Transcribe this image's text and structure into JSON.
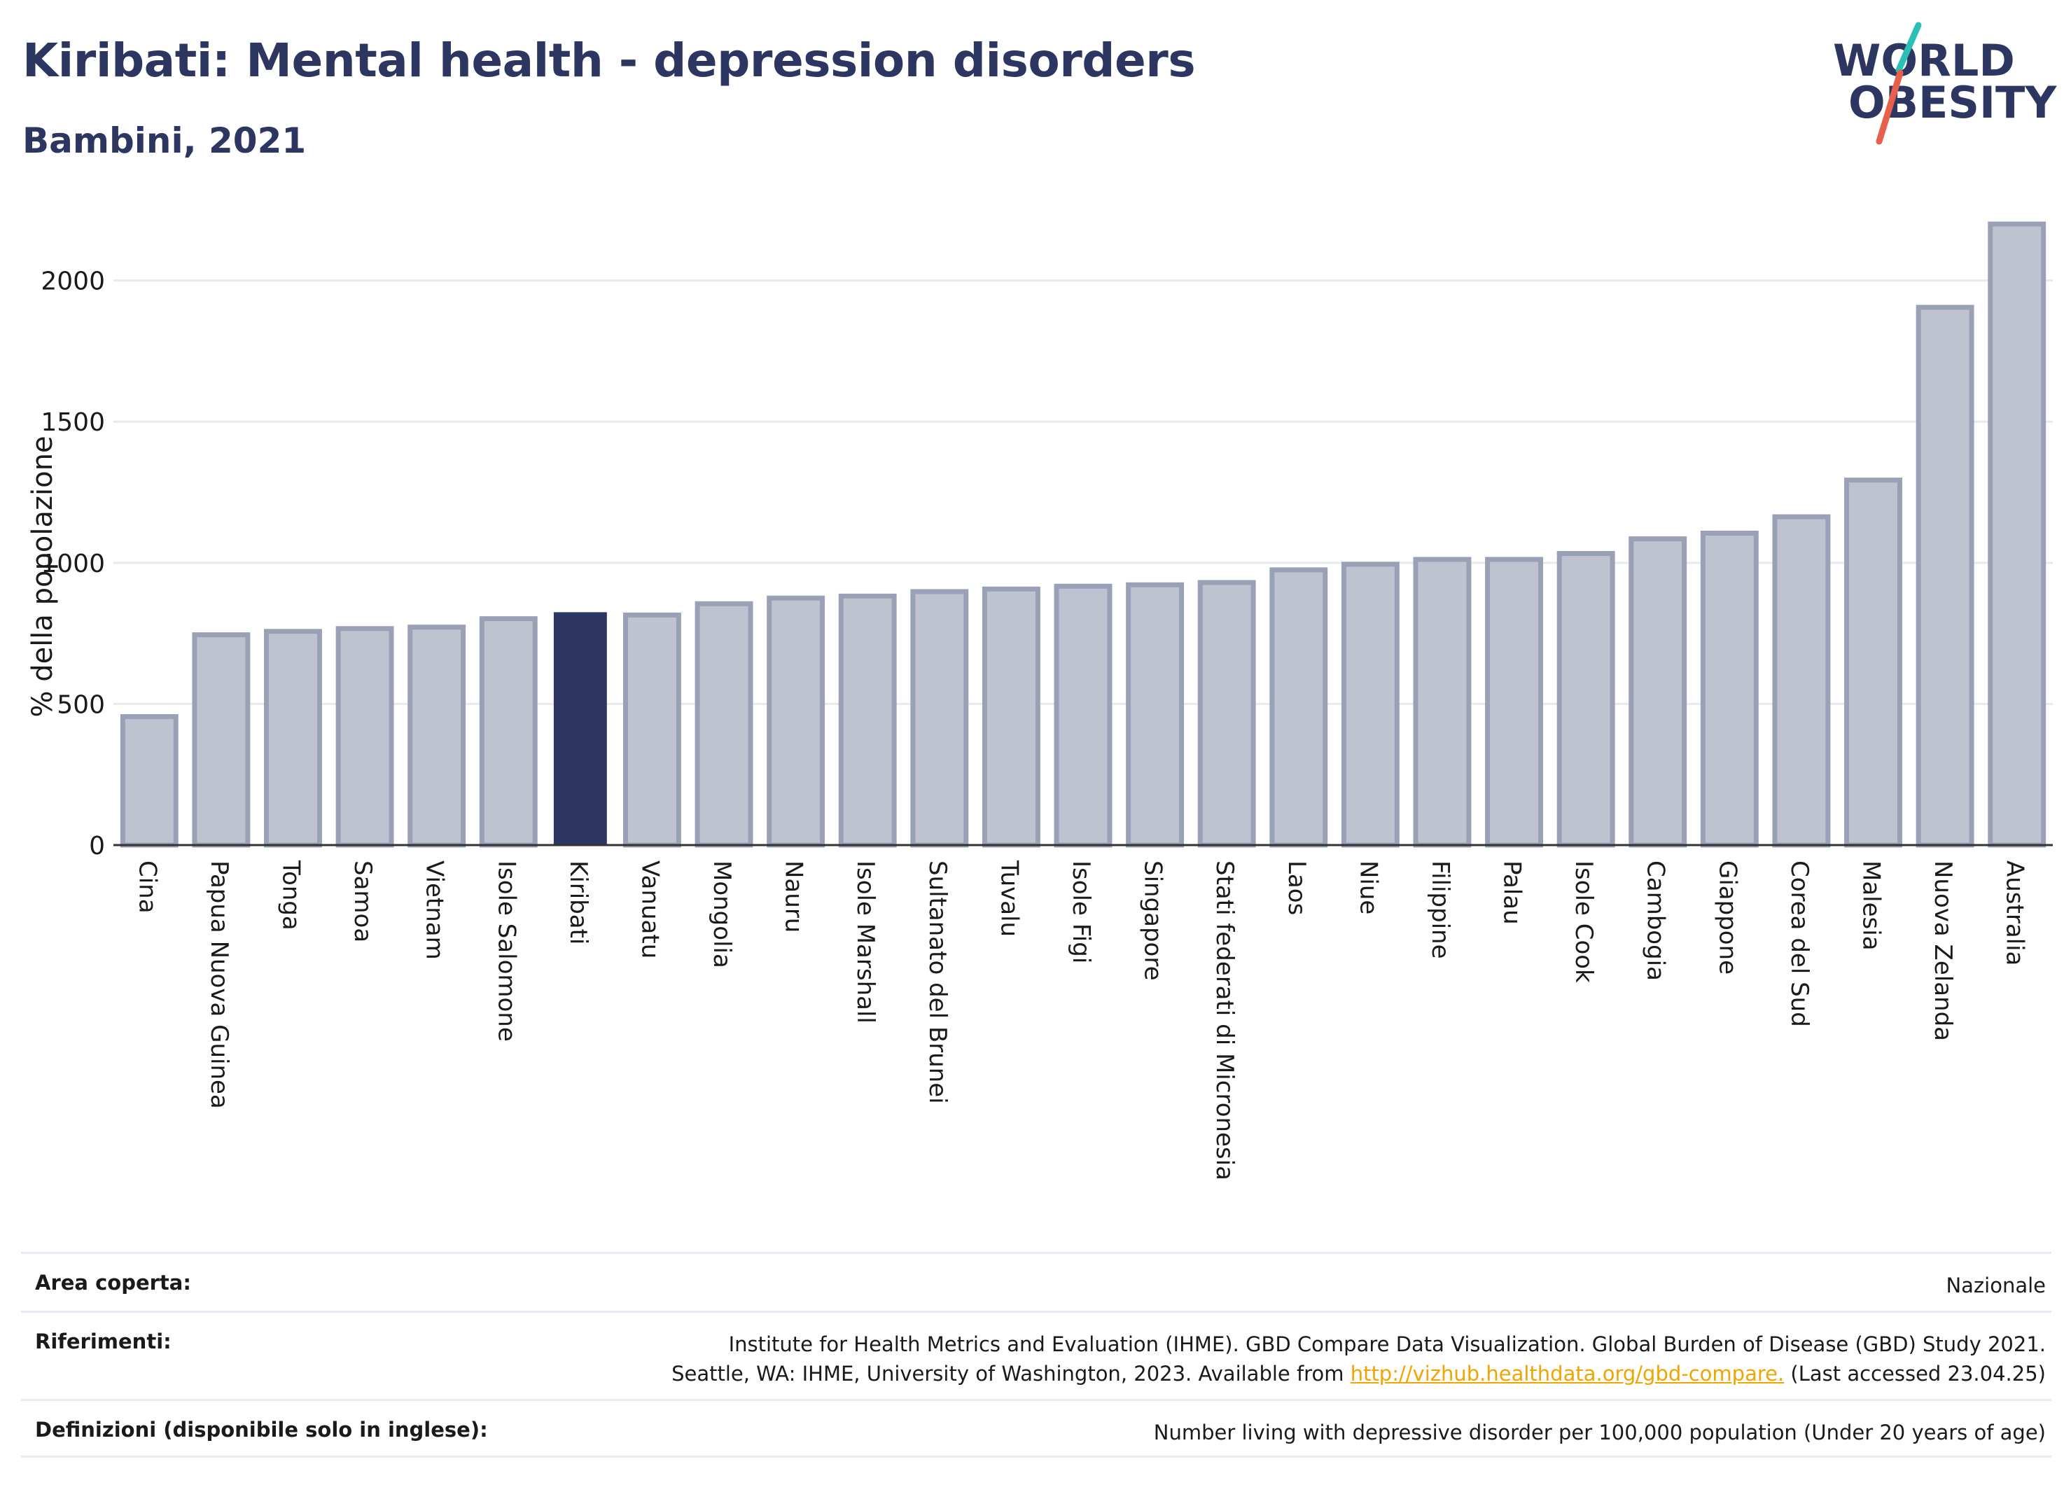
{
  "header": {
    "title": "Kiribati: Mental health - depression disorders",
    "subtitle": "Bambini, 2021"
  },
  "logo": {
    "line1": "WORLD",
    "line2": "OBESITY",
    "accent_colors": [
      "#2bbfb8",
      "#e8604c"
    ]
  },
  "colors": {
    "highlight": "#2c3660",
    "bar_fill": "#bfc3d0",
    "bar_stroke": "#9aa0b6",
    "grid": "#e8eaf0",
    "axis": "#333333",
    "link": "#f0a500"
  },
  "chart_data": {
    "type": "bar",
    "title": "Kiribati: Mental health - depression disorders",
    "subtitle": "Bambini, 2021",
    "ylabel": "% della popolazione",
    "xlabel": "",
    "ylim": [
      0,
      2200
    ],
    "yticks": [
      0,
      500,
      1000,
      1500,
      2000
    ],
    "grid": true,
    "highlight": "Kiribati",
    "categories": [
      "Cina",
      "Papua Nuova Guinea",
      "Tonga",
      "Samoa",
      "Vietnam",
      "Isole Salomone",
      "Kiribati",
      "Vanuatu",
      "Mongolia",
      "Nauru",
      "Isole Marshall",
      "Sultanato del Brunei",
      "Tuvalu",
      "Isole Figi",
      "Singapore",
      "Stati federati di Micronesia",
      "Laos",
      "Niue",
      "Filippine",
      "Palau",
      "Isole Cook",
      "Cambogia",
      "Giappone",
      "Corea del Sud",
      "Malesia",
      "Nuova Zelanda",
      "Australia"
    ],
    "values": [
      455,
      745,
      757,
      767,
      772,
      802,
      825,
      815,
      855,
      875,
      882,
      898,
      907,
      917,
      922,
      930,
      975,
      995,
      1012,
      1012,
      1033,
      1085,
      1105,
      1163,
      1293,
      1905,
      2200
    ]
  },
  "meta": {
    "area_label": "Area coperta:",
    "area_value": "Nazionale",
    "refs_label": "Riferimenti:",
    "refs_line1": "Institute for Health Metrics and Evaluation (IHME). GBD Compare Data Visualization. Global Burden of Disease (GBD) Study 2021.",
    "refs_line2_pre": "Seattle, WA: IHME, University of Washington, 2023. Available from ",
    "refs_link": "http://vizhub.healthdata.org/gbd-compare.",
    "refs_line2_post": " (Last accessed 23.04.25)",
    "defs_label": "Definizioni (disponibile solo in inglese):",
    "defs_value": "Number living with depressive disorder per 100,000 population (Under 20 years of age)"
  }
}
